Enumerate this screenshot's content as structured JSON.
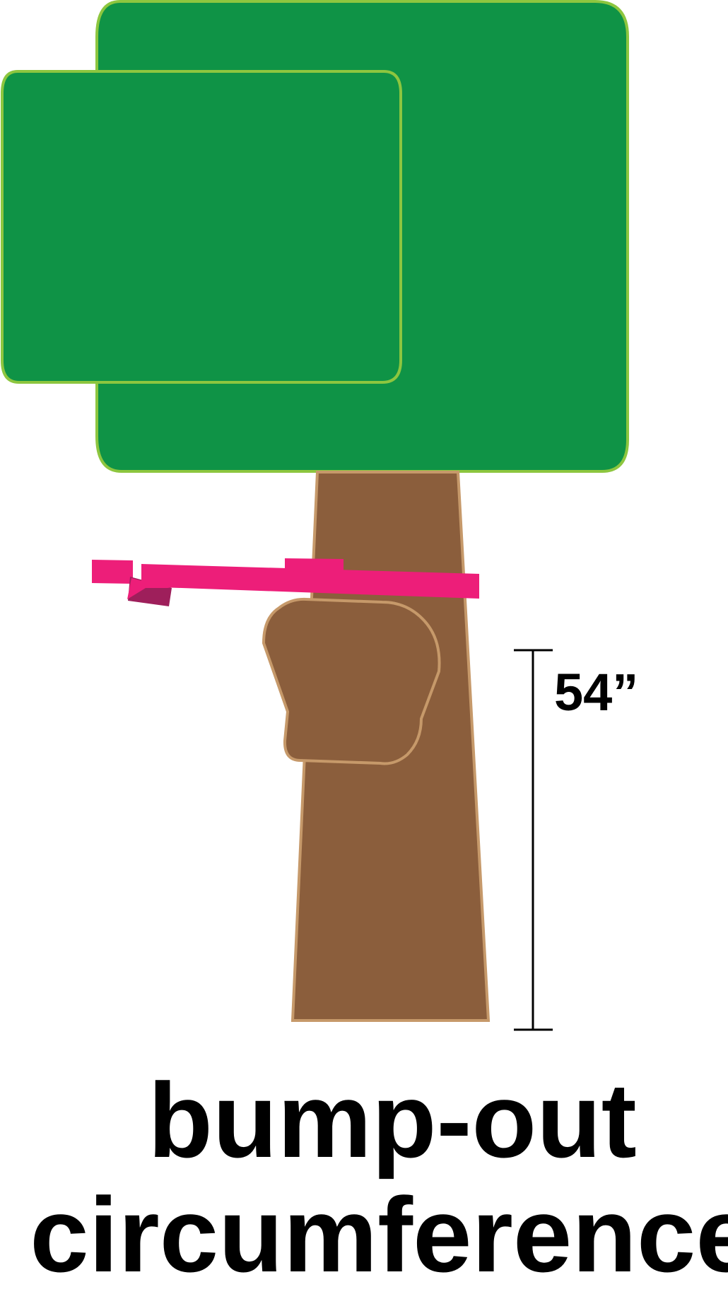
{
  "measurement": {
    "height_label": "54”"
  },
  "caption": {
    "line1": "bump-out",
    "line2": "circumference"
  },
  "colors": {
    "canopy_fill": "#0f9346",
    "canopy_stroke": "#8dc63f",
    "trunk_fill": "#8b5e3c",
    "trunk_stroke": "#c6996a",
    "tape_fill": "#ed1e79",
    "tape_shadow": "#9e1f5b",
    "line_color": "#000000"
  }
}
